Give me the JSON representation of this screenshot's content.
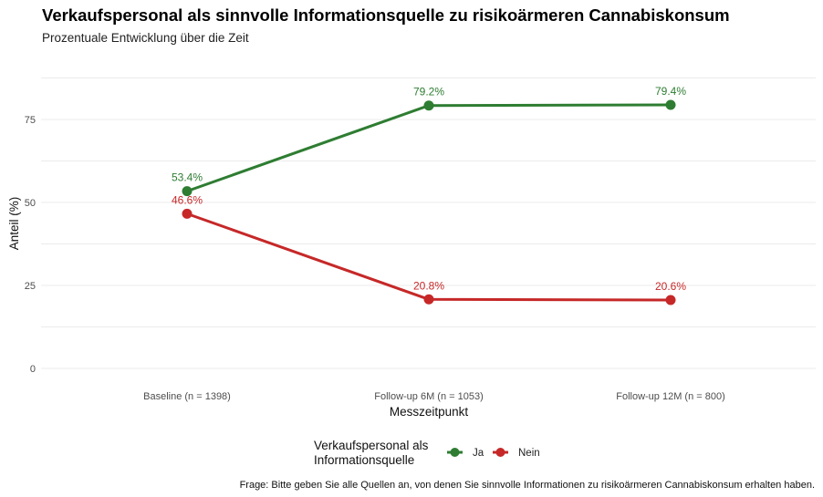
{
  "chart_data": {
    "type": "line",
    "title": "Verkaufspersonal als sinnvolle Informationsquelle zu risikoärmeren Cannabiskonsum",
    "subtitle": "Prozentuale Entwicklung über die Zeit",
    "xlabel": "Messzeitpunkt",
    "ylabel": "Anteil (%)",
    "categories": [
      "Baseline (n = 1398)",
      "Follow-up 6M (n = 1053)",
      "Follow-up 12M (n = 800)"
    ],
    "yticks": [
      0,
      25,
      50,
      75
    ],
    "ylim": [
      0,
      87.5
    ],
    "grid": true,
    "legend": {
      "title_lines": [
        "Verkaufspersonal als",
        "Informationsquelle"
      ],
      "position": "bottom"
    },
    "series": [
      {
        "name": "Ja",
        "color": "#2e7d32",
        "values": [
          53.4,
          79.2,
          79.4
        ],
        "labels": [
          "53.4%",
          "79.2%",
          "79.4%"
        ]
      },
      {
        "name": "Nein",
        "color": "#c62828",
        "values": [
          46.6,
          20.8,
          20.6
        ],
        "labels": [
          "46.6%",
          "20.8%",
          "20.6%"
        ]
      }
    ],
    "caption": "Frage: Bitte geben Sie alle Quellen an, von denen Sie sinnvolle Informationen zu risikoärmeren Cannabiskonsum erhalten haben."
  }
}
